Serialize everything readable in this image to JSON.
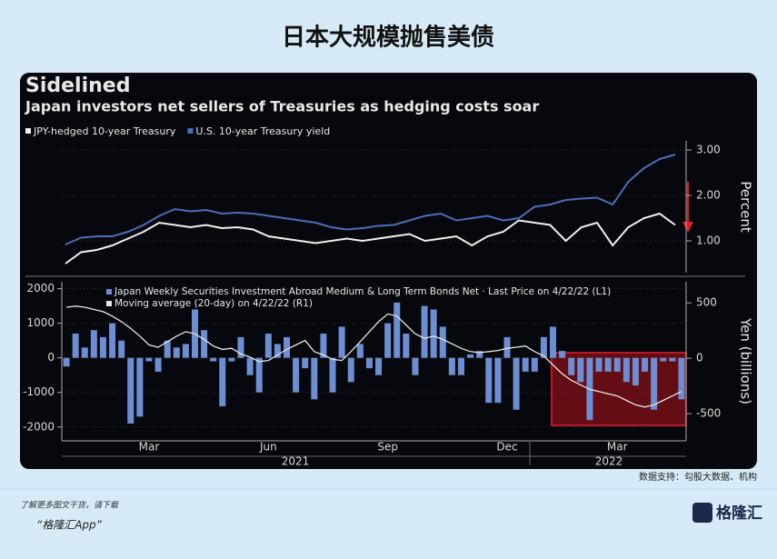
{
  "header": {
    "title": "日本大规模抛售美债"
  },
  "panel": {
    "title": "Sidelined",
    "subtitle": "Japan investors net sellers of Treasuries as hedging costs soar"
  },
  "chart_data": [
    {
      "type": "line",
      "ylabel": "Percent",
      "ylim": [
        0.3,
        3.2
      ],
      "yticks": [
        {
          "value": 1,
          "label": "1.00"
        },
        {
          "value": 2,
          "label": "2.00"
        },
        {
          "value": 3,
          "label": "3.00"
        }
      ],
      "grid": true,
      "series": [
        {
          "name": "JPY-hedged 10-year Treasury",
          "color": "#f0f0f0",
          "values": [
            0.5,
            0.75,
            0.8,
            0.9,
            1.05,
            1.2,
            1.4,
            1.35,
            1.3,
            1.35,
            1.28,
            1.3,
            1.25,
            1.1,
            1.05,
            1.0,
            0.95,
            1.0,
            1.05,
            1.0,
            1.05,
            1.1,
            1.15,
            1.0,
            1.05,
            1.1,
            0.9,
            1.1,
            1.2,
            1.45,
            1.4,
            1.35,
            1.0,
            1.3,
            1.4,
            0.9,
            1.3,
            1.5,
            1.6,
            1.35
          ]
        },
        {
          "name": "U.S. 10-year Treasury yield",
          "color": "#4a6fb8",
          "values": [
            0.92,
            1.07,
            1.1,
            1.1,
            1.2,
            1.35,
            1.55,
            1.7,
            1.65,
            1.68,
            1.6,
            1.62,
            1.6,
            1.55,
            1.5,
            1.45,
            1.4,
            1.3,
            1.25,
            1.28,
            1.33,
            1.35,
            1.45,
            1.55,
            1.6,
            1.45,
            1.5,
            1.55,
            1.45,
            1.5,
            1.75,
            1.8,
            1.9,
            1.93,
            1.95,
            1.8,
            2.3,
            2.6,
            2.8,
            2.9
          ]
        }
      ]
    },
    {
      "type": "bar",
      "ylabel": "Yen (billions)",
      "categories": [
        null,
        null,
        null,
        null,
        null,
        null,
        null,
        null,
        null,
        "Mar",
        null,
        null,
        null,
        null,
        null,
        null,
        null,
        null,
        null,
        null,
        null,
        null,
        "Jun",
        null,
        null,
        null,
        null,
        null,
        null,
        null,
        null,
        null,
        null,
        null,
        null,
        "Sep",
        null,
        null,
        null,
        null,
        null,
        null,
        null,
        null,
        null,
        null,
        null,
        null,
        "Dec",
        null,
        null,
        null,
        null,
        null,
        null,
        null,
        null,
        null,
        null,
        null,
        "Mar",
        null,
        null,
        null,
        null,
        null,
        null,
        null
      ],
      "year_labels": [
        "2021",
        "2022"
      ],
      "ylim": [
        -2400,
        2200
      ],
      "yticks": [
        -2000,
        -1000,
        0,
        1000,
        2000
      ],
      "y2lim": [
        -745,
        690
      ],
      "y2ticks": [
        -500,
        0,
        500
      ],
      "grid": true,
      "series": [
        {
          "name": "Japan Weekly Securities Investment Abroad Medium & Long Term Bonds Net · Last Price on 4/22/22 (L1)",
          "color": "#6d8ed2",
          "values": [
            -250,
            700,
            300,
            800,
            600,
            1000,
            500,
            -1900,
            -1700,
            -100,
            -400,
            500,
            300,
            400,
            1400,
            800,
            -100,
            -1400,
            -100,
            600,
            -500,
            -1000,
            700,
            400,
            600,
            -1000,
            -300,
            -1200,
            700,
            -1000,
            900,
            -700,
            400,
            -300,
            -500,
            1000,
            1600,
            700,
            -500,
            1500,
            1400,
            900,
            -500,
            -500,
            100,
            200,
            -1300,
            -1300,
            600,
            -1500,
            -400,
            -400,
            600,
            900,
            200,
            -500,
            -700,
            -1800,
            -400,
            -400,
            -400,
            -700,
            -800,
            -400,
            -1500,
            -100,
            -100,
            -1200
          ]
        },
        {
          "name": "Moving average (20-day) on 4/22/22 (R1)",
          "color": "#e6e6e6",
          "axis": "y2",
          "values": [
            460,
            470,
            460,
            440,
            420,
            380,
            330,
            270,
            200,
            120,
            100,
            150,
            200,
            240,
            220,
            170,
            110,
            80,
            90,
            40,
            10,
            -30,
            -20,
            30,
            80,
            120,
            160,
            60,
            30,
            -10,
            -20,
            60,
            150,
            240,
            330,
            400,
            380,
            300,
            220,
            180,
            200,
            170,
            130,
            90,
            60,
            50,
            60,
            70,
            90,
            100,
            110,
            60,
            20,
            -60,
            -140,
            -200,
            -240,
            -280,
            -300,
            -320,
            -340,
            -380,
            -420,
            -440,
            -420,
            -380,
            -340,
            -300
          ]
        }
      ]
    }
  ],
  "source": "数据支持：勾股大数据、机构",
  "footer": {
    "line1": "了解更多图文干货，请下载",
    "line2": "“格隆汇App”",
    "logo": "格隆汇"
  }
}
